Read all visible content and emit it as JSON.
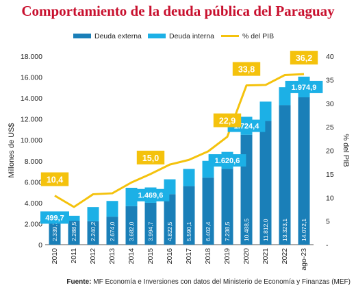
{
  "chart_data": {
    "type": "bar",
    "title": "Comportamiento de la deuda pública del Paraguay",
    "categories": [
      "2010",
      "2011",
      "2012",
      "2013",
      "2014",
      "2015",
      "2016",
      "2017",
      "2018",
      "2019",
      "2020",
      "2021",
      "2022",
      "ago-23"
    ],
    "series": [
      {
        "name": "Deuda externa",
        "axis": "left",
        "color": "#1a7fb8",
        "values": [
          2339.7,
          2288.5,
          2240.2,
          2674.0,
          3682.0,
          3994.7,
          4822.5,
          5590.1,
          6402.4,
          7238.5,
          10488.5,
          11812.0,
          13323.1,
          14072.1
        ]
      },
      {
        "name": "Deuda interna",
        "axis": "left",
        "color": "#1cb0e6",
        "values": [
          499.7,
          470,
          1350,
          1500,
          1750,
          1469.6,
          1420,
          1640,
          1600,
          1620.6,
          1724.4,
          1850,
          1720,
          1974.9
        ]
      },
      {
        "name": "% del PIB",
        "axis": "right",
        "type": "line",
        "color": "#f4c20d",
        "values": [
          10.4,
          8.0,
          10.7,
          10.9,
          13.2,
          15.0,
          17.0,
          18.0,
          19.8,
          22.9,
          33.8,
          33.9,
          36.0,
          36.2
        ]
      }
    ],
    "bar_labels": {
      "externa": [
        "2.339,7",
        "2.288,5",
        "2.240,2",
        "2.674,0",
        "3.682,0",
        "3.994,7",
        "4.822,5",
        "5.590,1",
        "6.402,4",
        "7.238,5",
        "10.488,5",
        "11.812,0",
        "13.323,1",
        "14.072,1"
      ],
      "interna": [
        {
          "index": 0,
          "text": "499,7"
        },
        {
          "index": 5,
          "text": "1.469,6"
        },
        {
          "index": 9,
          "text": "1.620,6"
        },
        {
          "index": 10,
          "text": "1.724,4"
        },
        {
          "index": 13,
          "text": "1.974,9"
        }
      ],
      "pib": [
        {
          "index": 0,
          "text": "10,4"
        },
        {
          "index": 5,
          "text": "15,0"
        },
        {
          "index": 9,
          "text": "22,9"
        },
        {
          "index": 10,
          "text": "33,8"
        },
        {
          "index": 13,
          "text": "36,2"
        }
      ]
    },
    "ylabel": "Millones de US$",
    "y2label": "% del PIB",
    "ylim": [
      0,
      18000
    ],
    "y2lim": [
      0,
      40
    ],
    "y_ticks": [
      "0",
      "2.000",
      "4.000",
      "6.000",
      "8.000",
      "10.000",
      "12.000",
      "14.000",
      "16.000",
      "18.000"
    ],
    "y2_ticks": [
      "-",
      "5",
      "10",
      "15",
      "20",
      "25",
      "30",
      "35",
      "40"
    ],
    "legend_position": "top",
    "grid": false
  },
  "source": {
    "label": "Fuente:",
    "text": "MF Economía e Inversiones con datos del Ministerio de Economía y Finanzas (MEF)"
  }
}
